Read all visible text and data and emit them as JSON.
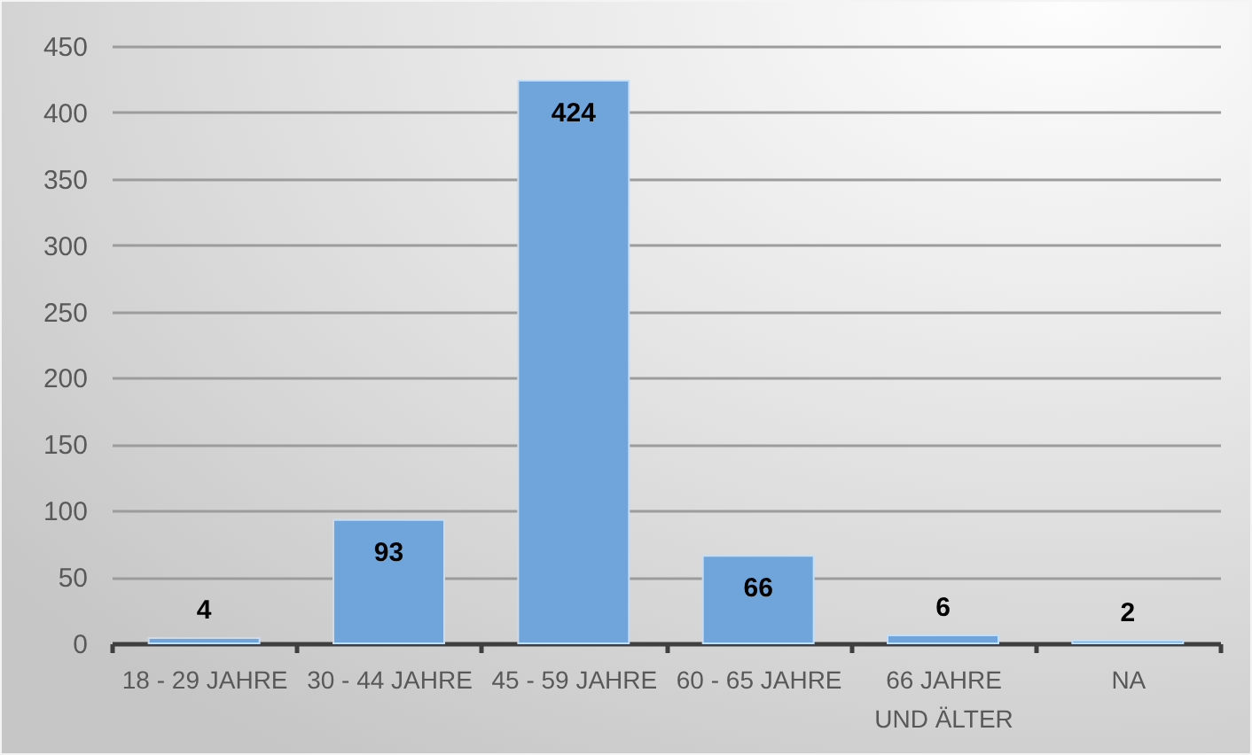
{
  "chart_data": {
    "type": "bar",
    "categories": [
      "18 - 29 JAHRE",
      "30 - 44 JAHRE",
      "45 - 59 JAHRE",
      "60 - 65 JAHRE",
      "66 JAHRE UND ÄLTER",
      "NA"
    ],
    "values": [
      4,
      93,
      424,
      66,
      6,
      2
    ],
    "color": "#6fa5db",
    "ylim": [
      0,
      450
    ],
    "yticks": [
      0,
      50,
      100,
      150,
      200,
      250,
      300,
      350,
      400,
      450
    ],
    "grid": "y",
    "data_labels": true
  }
}
